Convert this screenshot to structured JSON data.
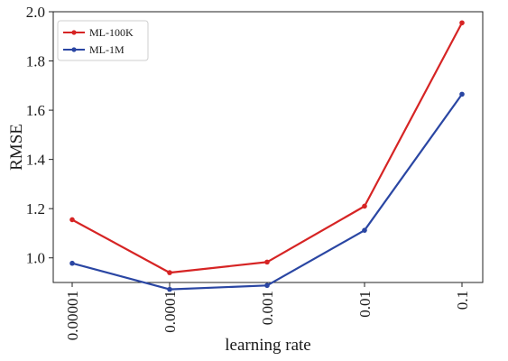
{
  "chart_data": {
    "type": "line",
    "title": "",
    "xlabel": "learning rate",
    "ylabel": "RMSE",
    "categories": [
      "0.00001",
      "0.0001",
      "0.001",
      "0.01",
      "0.1"
    ],
    "ylim": [
      0.9,
      2.0
    ],
    "yticks": [
      "1.0",
      "1.2",
      "1.4",
      "1.6",
      "1.8",
      "2.0"
    ],
    "ytick_values": [
      1.0,
      1.2,
      1.4,
      1.6,
      1.8,
      2.0
    ],
    "grid": false,
    "legend_position": "top-left",
    "series": [
      {
        "name": "ML-100K",
        "color": "#d62424",
        "values": [
          1.155,
          0.94,
          0.983,
          1.21,
          1.955
        ]
      },
      {
        "name": "ML-1M",
        "color": "#2a46a3",
        "values": [
          0.978,
          0.872,
          0.888,
          1.112,
          1.665
        ]
      }
    ]
  }
}
